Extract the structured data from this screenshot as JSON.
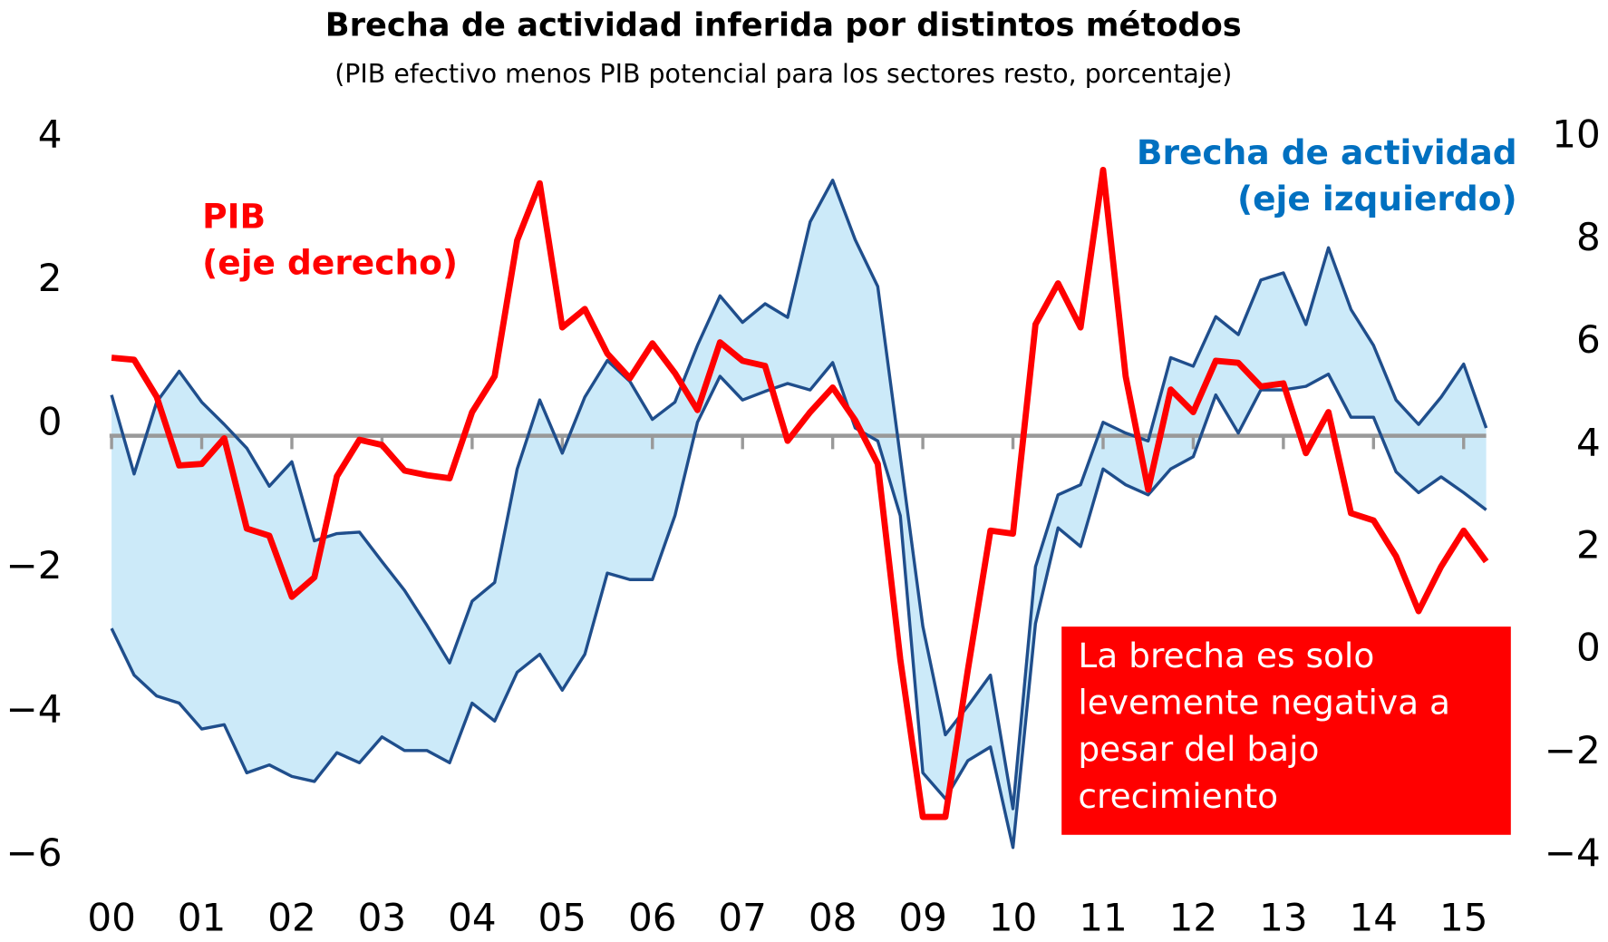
{
  "chart_data": {
    "type": "line",
    "title": "Brecha de actividad inferida por distintos métodos",
    "subtitle": "(PIB efectivo menos PIB potencial para los sectores resto, porcentaje)",
    "categories": [
      "00",
      null,
      null,
      null,
      "01",
      null,
      null,
      null,
      "02",
      null,
      null,
      null,
      "03",
      null,
      null,
      null,
      "04",
      null,
      null,
      null,
      "05",
      null,
      null,
      null,
      "06",
      null,
      null,
      null,
      "07",
      null,
      null,
      null,
      "08",
      null,
      null,
      null,
      "09",
      null,
      null,
      null,
      "10",
      null,
      null,
      null,
      "11",
      null,
      null,
      null,
      "12",
      null,
      null,
      null,
      "13",
      null,
      null,
      null,
      "14",
      null,
      null,
      null,
      "15",
      null
    ],
    "ylim": [
      -6,
      4
    ],
    "yticks": [
      {
        "value": -6,
        "label": "−6"
      },
      {
        "value": -4,
        "label": "−4"
      },
      {
        "value": -2,
        "label": "−2"
      },
      0,
      2,
      4
    ],
    "y2lim": [
      -4,
      10
    ],
    "y2ticks": [
      {
        "value": -4,
        "label": "−4"
      },
      {
        "value": -2,
        "label": "−2"
      },
      0,
      2,
      4,
      6,
      8,
      10
    ],
    "series": [
      {
        "name": [
          "Brecha de actividad",
          "(eje izquierdo)"
        ],
        "color": "#1f4e8c",
        "fill": "#cceaf9",
        "label_color": "#0070c0",
        "upper": [
          0.41,
          -0.69,
          0.31,
          0.74,
          0.31,
          0,
          -0.33,
          -0.86,
          -0.52,
          -1.62,
          -1.52,
          -1.5,
          -1.91,
          -2.31,
          -2.8,
          -3.32,
          -2.46,
          -2.2,
          -0.62,
          0.34,
          -0.4,
          0.38,
          0.89,
          0.6,
          0.07,
          0.31,
          1.1,
          1.79,
          1.42,
          1.68,
          1.49,
          2.82,
          3.4,
          2.57,
          1.92,
          -0.45,
          -2.81,
          -4.32,
          -3.92,
          -3.49,
          -5.35,
          -1.98,
          -0.98,
          -0.84,
          0.03,
          -0.12,
          -0.23,
          0.93,
          0.81,
          1.5,
          1.25,
          2.01,
          2.11,
          1.39,
          2.46,
          1.6,
          1.1,
          0.34,
          0,
          0.38,
          0.84,
          -0.05
        ],
        "lower": [
          -2.84,
          -3.49,
          -3.78,
          -3.88,
          -4.24,
          -4.18,
          -4.85,
          -4.74,
          -4.9,
          -4.97,
          -4.57,
          -4.71,
          -4.35,
          -4.54,
          -4.54,
          -4.71,
          -3.88,
          -4.13,
          -3.45,
          -3.2,
          -3.7,
          -3.2,
          -2.07,
          -2.16,
          -2.16,
          -1.27,
          0.03,
          0.67,
          0.34,
          0.46,
          0.57,
          0.48,
          0.86,
          -0.05,
          -0.23,
          -1.27,
          -4.85,
          -5.21,
          -4.68,
          -4.49,
          -5.89,
          -2.77,
          -1.44,
          -1.7,
          -0.62,
          -0.84,
          -0.98,
          -0.62,
          -0.45,
          0.41,
          -0.12,
          0.48,
          0.48,
          0.53,
          0.7,
          0.1,
          0.1,
          -0.66,
          -0.95,
          -0.73,
          -0.95,
          -1.19
        ]
      },
      {
        "name": [
          "PIB",
          "(eje derecho)"
        ],
        "color": "#ff0000",
        "label_color": "#ff0000",
        "axis": "y2",
        "values": [
          5.7,
          5.66,
          4.94,
          3.6,
          3.63,
          4.13,
          2.37,
          2.23,
          1.04,
          1.42,
          3.39,
          4.1,
          4.0,
          3.5,
          3.41,
          3.35,
          4.64,
          5.34,
          7.99,
          9.1,
          6.29,
          6.65,
          5.78,
          5.3,
          5.98,
          5.4,
          4.68,
          6.0,
          5.64,
          5.54,
          4.08,
          4.64,
          5.12,
          4.48,
          3.63,
          -0.18,
          -3.25,
          -3.25,
          -0.38,
          2.33,
          2.27,
          6.35,
          7.15,
          6.29,
          9.36,
          5.34,
          3.13,
          5.08,
          4.64,
          5.64,
          5.6,
          5.14,
          5.2,
          3.84,
          4.64,
          2.67,
          2.53,
          1.83,
          0.76,
          1.63,
          2.33,
          1.73
        ]
      }
    ],
    "annotation": {
      "lines": [
        "La brecha es solo",
        "levemente negativa a",
        "pesar del bajo",
        "crecimiento"
      ],
      "background": "#ff0000",
      "color": "#ffffff"
    }
  }
}
